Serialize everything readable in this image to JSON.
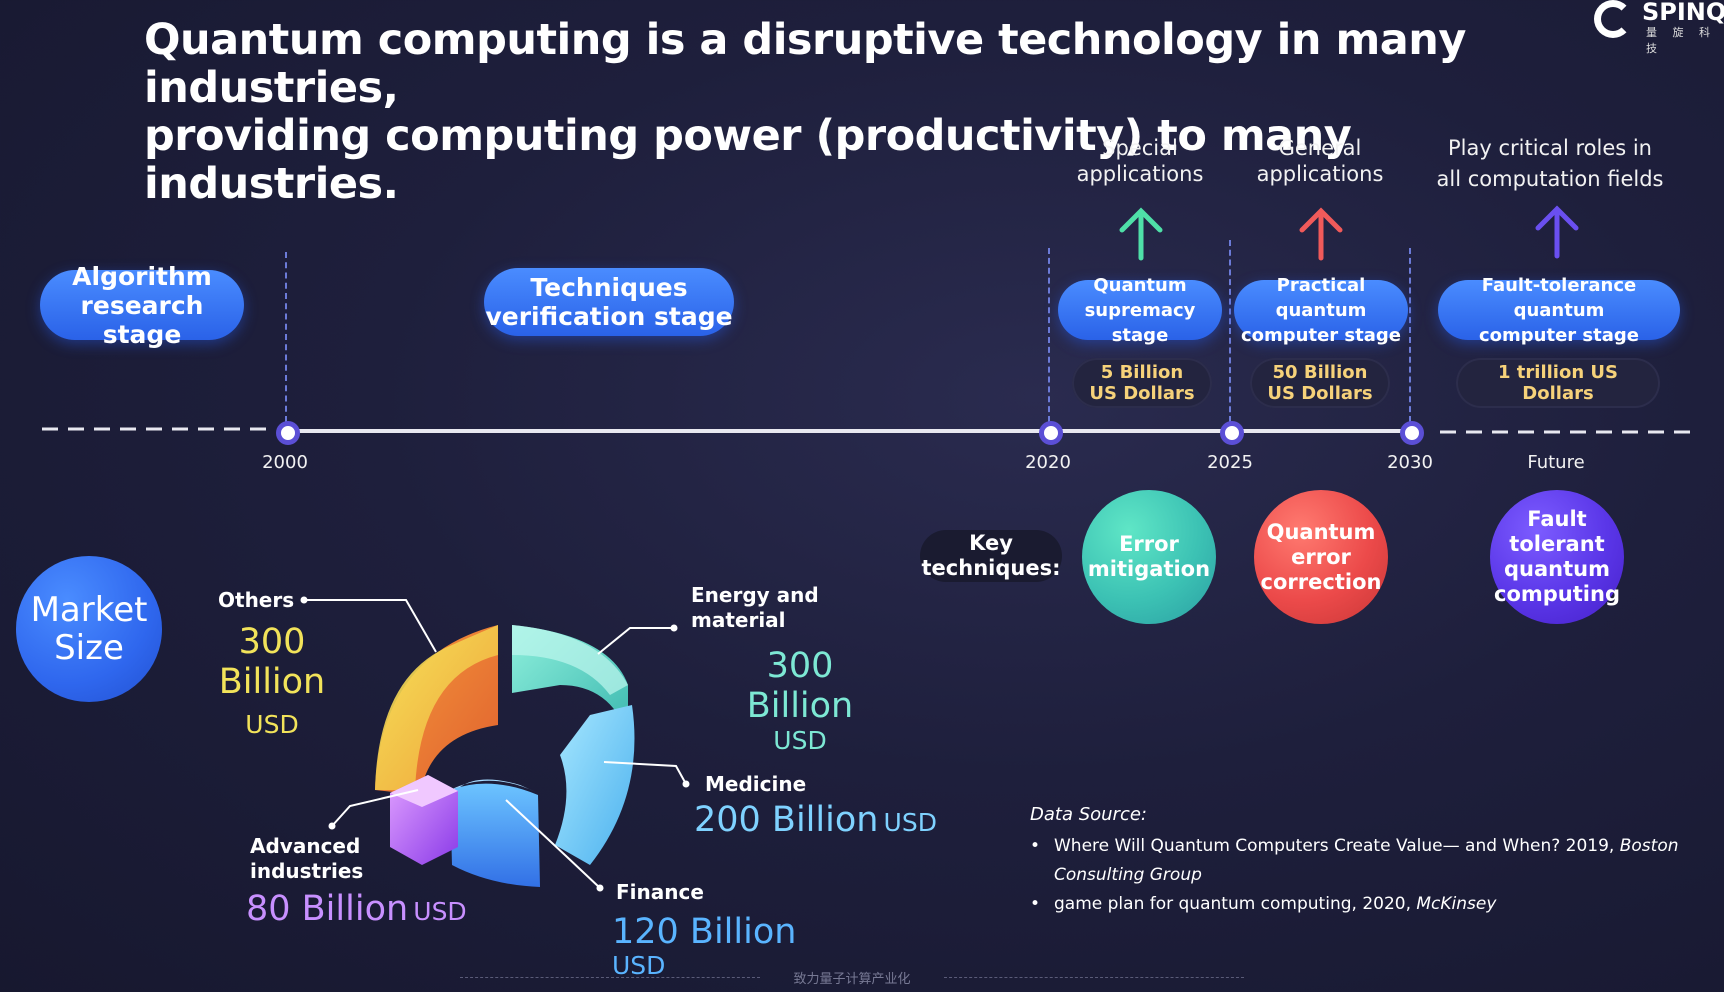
{
  "title": {
    "line1": "Quantum computing is a disruptive technology in many industries,",
    "line2": "providing computing power (productivity) to many industries."
  },
  "logo": {
    "name": "SPINQ",
    "sub": "量 旋 科 技"
  },
  "applications": [
    {
      "line1": "Special",
      "line2": "applications",
      "color": "#4fe0a8"
    },
    {
      "line1": "General",
      "line2": "applications",
      "color": "#f05a5a"
    },
    {
      "line1": "Play critical roles in",
      "line2": "all computation fields",
      "color": "#6a4ff0"
    }
  ],
  "stages": {
    "algorithm": {
      "line1": "Algorithm",
      "line2": "research stage"
    },
    "techniques": {
      "line1": "Techniques",
      "line2": "verification stage"
    },
    "supremacy": {
      "line1": "Quantum",
      "line2": "supremacy stage"
    },
    "practical": {
      "line1": "Practical quantum",
      "line2": "computer stage"
    },
    "fault": {
      "line1": "Fault-tolerance quantum",
      "line2": "computer stage"
    }
  },
  "market_values": [
    {
      "line1": "5 Billion",
      "line2": "US Dollars"
    },
    {
      "line1": "50 Billion",
      "line2": "US Dollars"
    },
    {
      "line1": "1 trillion US",
      "line2": "Dollars"
    }
  ],
  "timeline": {
    "years": [
      "2000",
      "2020",
      "2025",
      "2030",
      "Future"
    ]
  },
  "key_techniques": {
    "label_line1": "Key",
    "label_line2": "techniques:",
    "items": [
      {
        "lines": [
          "Error",
          "mitigation"
        ]
      },
      {
        "lines": [
          "Quantum",
          "error",
          "correction"
        ]
      },
      {
        "lines": [
          "Fault",
          "tolerant",
          "quantum",
          "computing"
        ]
      }
    ]
  },
  "market_size": {
    "title_line1": "Market",
    "title_line2": "Size",
    "segments": [
      {
        "name": "Others",
        "value": "300",
        "value2": "Billion",
        "unit": "USD",
        "color": "#f2e35a"
      },
      {
        "name_line1": "Energy and",
        "name_line2": "material",
        "value": "300 Billion",
        "unit": "USD",
        "color": "#7de8d4"
      },
      {
        "name": "Medicine",
        "value": "200 Billion",
        "unit": "USD",
        "color": "#7fd2ff"
      },
      {
        "name": "Finance",
        "value": "120 Billion",
        "unit": "USD",
        "color": "#5ab4ff"
      },
      {
        "name_line1": "Advanced",
        "name_line2": "industries",
        "value": "80 Billion",
        "unit": "USD",
        "color": "#c890ff"
      }
    ]
  },
  "data_source": {
    "label": "Data Source:",
    "items": [
      {
        "text": "Where Will Quantum Computers Create Value— and When? 2019, ",
        "italic": "Boston",
        "line2": "Consulting Group"
      },
      {
        "text": "game plan for quantum computing, 2020, ",
        "italic": "McKinsey"
      }
    ]
  },
  "footer": {
    "text": "致力量子计算产业化"
  }
}
